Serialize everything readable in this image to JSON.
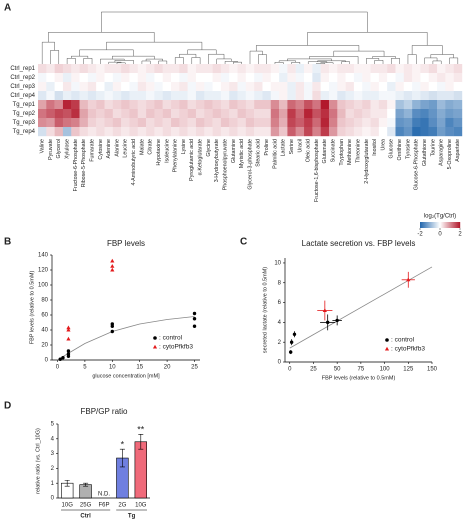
{
  "panel_labels": [
    "A",
    "B",
    "C",
    "D"
  ],
  "chart_data": [
    {
      "type": "heatmap",
      "rows": [
        "Ctrl_rep1",
        "Ctrl_rep2",
        "Ctrl_rep3",
        "Ctrl_rep4",
        "Tg_rep1",
        "Tg_rep2",
        "Tg_rep3",
        "Tg_rep4"
      ],
      "columns": [
        "Valine",
        "Pyruvate",
        "Glycerol",
        "Xylulose",
        "Fructose-6-Phosphate",
        "Ribose-5-Phosphate",
        "Fumarate",
        "Cytosine",
        "Adenine",
        "Alanine",
        "Leucine",
        "4-Aminobutyric acid",
        "Malate",
        "Citrate",
        "Hypotaxine",
        "Isoleucine",
        "Phenylalanine",
        "Lysine",
        "Pyroglutamic acid",
        "α-Ketoglutarate",
        "Glycine",
        "3-Hydroxybutyrate",
        "Phosphoenolpyruvate",
        "Glutamine",
        "Myristic acid",
        "Glycerol-3-phosphate",
        "Stearic acid",
        "Proline",
        "Palmitic acid",
        "Lactate",
        "Serine",
        "Uracil",
        "Oleic acid",
        "Fructose-1,6-bisphosphate",
        "Glutamate",
        "Succinate",
        "Tryptophan",
        "Methionine",
        "Threonine",
        "2-Hydroxyglutarate",
        "Inositol",
        "Urea",
        "Glucose",
        "Ornithine",
        "Tyrosine",
        "Glucose-6-Phosphate",
        "Glutathione",
        "Taurine",
        "Asparagine",
        "5-Oxoproline",
        "Aspartate"
      ],
      "values": [
        [
          0.3,
          0.2,
          0.4,
          0.3,
          0.2,
          0.3,
          0.2,
          0.1,
          0.2,
          0.2,
          0.3,
          0.2,
          0.1,
          0.2,
          0.3,
          0.2,
          0.2,
          0.3,
          0.1,
          0.2,
          0.2,
          0.3,
          0.2,
          0.1,
          0.2,
          0.1,
          0.2,
          0.2,
          0.1,
          -0.1,
          0.2,
          -0.2,
          0.1,
          -0.2,
          0.2,
          0.1,
          0.2,
          0.2,
          0.1,
          0.1,
          0.2,
          0.2,
          0.3,
          0.1,
          0.2,
          0.1,
          0.2,
          0.3,
          0.1,
          0.2,
          0.3
        ],
        [
          -0.1,
          0,
          0.1,
          -0.2,
          0.1,
          0,
          -0.1,
          0.1,
          0,
          -0.1,
          0.1,
          0,
          0.1,
          -0.1,
          0,
          0.1,
          0,
          -0.1,
          0.1,
          0,
          0,
          0.1,
          -0.1,
          0,
          0.1,
          0,
          -0.1,
          0.1,
          0,
          -0.2,
          0.1,
          -0.1,
          0,
          -0.3,
          0.1,
          0,
          0.1,
          0,
          -0.1,
          0.1,
          0,
          0.1,
          0,
          -0.1,
          0.2,
          0.1,
          0,
          0.1,
          0.2,
          0.1,
          0.2
        ],
        [
          0.1,
          -0.2,
          0,
          0.2,
          -0.1,
          0.1,
          0.2,
          0,
          -0.2,
          0.1,
          0,
          -0.1,
          0.2,
          0.1,
          -0.1,
          0,
          0.1,
          0.2,
          -0.1,
          0.1,
          -0.1,
          0,
          0.1,
          0.2,
          -0.1,
          0.1,
          0.2,
          0,
          0.1,
          0.1,
          -0.2,
          0.2,
          -0.1,
          0.2,
          0,
          -0.1,
          0.1,
          0.2,
          0,
          -0.1,
          0.1,
          0,
          -0.2,
          0.1,
          0,
          -0.1,
          0.1,
          0,
          -0.1,
          0.1,
          0
        ],
        [
          -0.3,
          -0.1,
          -0.4,
          -0.2,
          -0.3,
          -0.2,
          -0.3,
          -0.2,
          -0.1,
          -0.2,
          -0.3,
          -0.2,
          -0.2,
          -0.1,
          -0.2,
          -0.3,
          -0.2,
          -0.2,
          -0.1,
          -0.3,
          -0.2,
          -0.2,
          -0.1,
          -0.3,
          -0.2,
          -0.1,
          -0.2,
          -0.3,
          -0.1,
          0.1,
          -0.2,
          0.2,
          -0.1,
          0.3,
          -0.2,
          -0.1,
          -0.3,
          -0.2,
          -0.1,
          -0.2,
          -0.2,
          -0.1,
          -0.1,
          -0.2,
          -0.3,
          -0.2,
          -0.3,
          -0.4,
          -0.3,
          -0.3,
          -0.4
        ],
        [
          0.8,
          1.2,
          1.0,
          1.9,
          1.7,
          0.6,
          0.4,
          0.5,
          0.3,
          0.4,
          0.5,
          0.4,
          0.3,
          0.4,
          0.5,
          0.3,
          0.4,
          0.5,
          0.3,
          0.4,
          0.5,
          0.4,
          0.3,
          0.5,
          0.4,
          0.3,
          0.5,
          0.5,
          1.0,
          0.6,
          1.3,
          1.1,
          1.5,
          1.2,
          2.0,
          1.0,
          0.5,
          0.4,
          0.3,
          0.4,
          0.2,
          0.3,
          0.1,
          -0.8,
          -0.6,
          -1.0,
          -1.2,
          -1.3,
          -0.9,
          -1.1,
          -1.0
        ],
        [
          1.2,
          1.4,
          1.6,
          1.5,
          1.8,
          0.8,
          0.5,
          0.4,
          0.5,
          0.3,
          0.4,
          0.5,
          0.3,
          0.5,
          0.4,
          0.5,
          0.3,
          0.4,
          0.5,
          0.3,
          0.4,
          0.5,
          0.4,
          0.3,
          0.5,
          0.4,
          0.3,
          0.3,
          1.2,
          0.8,
          1.7,
          1.3,
          1.9,
          1.5,
          1.8,
          1.2,
          0.6,
          0.3,
          0.4,
          0.3,
          0.2,
          0.2,
          0.0,
          -1.2,
          -1.0,
          -1.5,
          -1.6,
          -1.4,
          -1.1,
          -1.3,
          -1.2
        ],
        [
          1.0,
          0.9,
          1.4,
          1.2,
          1.1,
          0.7,
          0.4,
          0.3,
          0.4,
          0.5,
          0.3,
          0.4,
          0.5,
          0.3,
          0.4,
          0.3,
          0.5,
          0.4,
          0.3,
          0.5,
          0.4,
          0.3,
          0.5,
          0.4,
          0.3,
          0.5,
          0.4,
          0.4,
          1.1,
          0.7,
          1.6,
          1.4,
          1.7,
          1.3,
          1.9,
          1.1,
          0.5,
          0.4,
          0.3,
          0.2,
          0.3,
          0.1,
          -0.1,
          -1.4,
          -1.3,
          -1.7,
          -1.8,
          -1.5,
          -1.2,
          -1.6,
          -1.4
        ],
        [
          -0.4,
          0.3,
          0.6,
          -0.8,
          0.5,
          0.3,
          0.2,
          0.3,
          0.2,
          0.3,
          0.2,
          0.3,
          0.2,
          0.3,
          0.2,
          0.3,
          0.2,
          0.3,
          0.2,
          0.3,
          0.2,
          0.3,
          0.2,
          0.3,
          0.2,
          0.3,
          0.2,
          0.2,
          0.9,
          0.5,
          1.4,
          1.0,
          1.6,
          1.1,
          1.7,
          0.9,
          0.4,
          0.3,
          0.2,
          0.1,
          0.2,
          0.0,
          -0.3,
          -1.6,
          -1.4,
          -1.9,
          -1.8,
          -1.7,
          -1.3,
          -1.5,
          -1.6
        ]
      ],
      "colorbar_label": "log₂(Tg/Ctrl)",
      "zlim": [
        -2,
        2
      ],
      "zticks": [
        -2,
        0,
        2
      ],
      "colors": [
        "#2166ac",
        "#ffffff",
        "#b2182b"
      ]
    },
    {
      "type": "scatter",
      "title": "FBP levels",
      "xlabel": "glucose concentration [mM]",
      "ylabel": "FBP levels (relative to 0.5mM)",
      "xlim": [
        -1,
        26
      ],
      "xticks": [
        0,
        5,
        10,
        15,
        20,
        25
      ],
      "ylim": [
        0,
        140
      ],
      "yticks": [
        0,
        20,
        40,
        60,
        80,
        100,
        120,
        140
      ],
      "series": [
        {
          "name": ": control",
          "marker": "circle",
          "color": "#000000",
          "x": [
            0.5,
            1,
            2,
            2,
            2,
            10,
            10,
            10,
            25,
            25,
            25
          ],
          "values": [
            1,
            3,
            5,
            8,
            12,
            38,
            45,
            48,
            45,
            55,
            62
          ]
        },
        {
          "name": ": cytoPfkfb3",
          "marker": "triangle",
          "color": "#e31a1c",
          "x": [
            2,
            2,
            2,
            10,
            10,
            10
          ],
          "values": [
            28,
            40,
            43,
            120,
            125,
            132
          ]
        }
      ],
      "fit": {
        "color": "#888888",
        "x": [
          0,
          2,
          5,
          10,
          15,
          20,
          25
        ],
        "values": [
          0,
          9,
          22,
          38,
          48,
          54,
          58
        ]
      }
    },
    {
      "type": "scatter",
      "title": "Lactate secretion vs. FBP levels",
      "xlabel": "FBP levels (relative to 0.5mM)",
      "ylabel": "secreted lactate (relative to 0.5mM)",
      "xlim": [
        -5,
        150
      ],
      "xticks": [
        0,
        25,
        50,
        75,
        100,
        125,
        150
      ],
      "ylim": [
        0,
        10.5
      ],
      "yticks": [
        0,
        2,
        4,
        6,
        8,
        10
      ],
      "series": [
        {
          "name": ": control",
          "marker": "circle",
          "color": "#000000",
          "x": [
            1,
            2,
            5,
            40,
            50
          ],
          "values": [
            1,
            2,
            2.8,
            4,
            4.2
          ],
          "xerr": [
            0.5,
            0.5,
            1,
            8,
            5
          ],
          "yerr": [
            0.2,
            0.3,
            0.3,
            0.8,
            0.5
          ]
        },
        {
          "name": ": cytoPfkfb3",
          "marker": "triangle",
          "color": "#e31a1c",
          "x": [
            37,
            125
          ],
          "values": [
            5.2,
            8.3
          ],
          "xerr": [
            8,
            7
          ],
          "yerr": [
            1,
            0.8
          ]
        }
      ],
      "fit": {
        "color": "#888888",
        "x": [
          0,
          150
        ],
        "values": [
          1.4,
          9.6
        ]
      }
    },
    {
      "type": "bar",
      "title": "FBP/GP ratio",
      "ylabel": "relative ratio (vs. Ctrl_10G)",
      "categories": [
        "10G",
        "25G",
        "F6P",
        "2G",
        "10G"
      ],
      "groups": [
        {
          "label": "Ctrl",
          "size": 3
        },
        {
          "label": "Tg",
          "size": 2
        }
      ],
      "values": [
        1.0,
        0.9,
        null,
        2.7,
        3.8
      ],
      "errors": [
        0.2,
        0.1,
        null,
        0.6,
        0.5
      ],
      "colors": [
        "#ffffff",
        "#b0b0b0",
        null,
        "#6f7fe0",
        "#f06a7a"
      ],
      "annotations": [
        null,
        null,
        "N.D.",
        "*",
        "**"
      ],
      "ylim": [
        0,
        5
      ],
      "yticks": [
        0,
        1,
        2,
        3,
        4,
        5
      ]
    }
  ]
}
